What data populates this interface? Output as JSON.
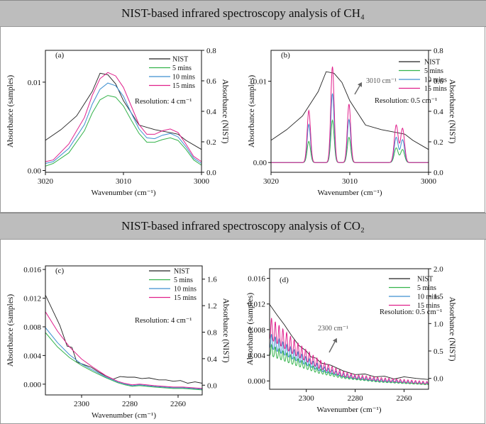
{
  "banners": {
    "ch4": "NIST-based infrared spectroscopy analysis of CH₄",
    "co2": "NIST-based infrared spectroscopy analysis of CO₂"
  },
  "colors": {
    "nist": "#222222",
    "m5": "#33b34a",
    "m10": "#3d8fd0",
    "m15": "#e0208c"
  },
  "chart_data": [
    {
      "id": "a",
      "type": "line",
      "panel_label": "(a)",
      "annotation": "Resolution: 4 cm⁻¹",
      "xlabel": "Wavenumber (cm⁻¹)",
      "ylabel": "Absorbance (samples)",
      "y2label": "Absorbance (NIST)",
      "xlim": [
        3020,
        3000
      ],
      "ylim": [
        -0.0002,
        0.0136
      ],
      "y2lim": [
        0,
        0.8
      ],
      "xticks": [
        "3020",
        "3010",
        "3000"
      ],
      "xtick_values": [
        3020,
        3010,
        3000
      ],
      "yticks": [
        "0.00",
        "0.01"
      ],
      "ytick_values": [
        0,
        0.01
      ],
      "y2ticks": [
        "0.0",
        "0.2",
        "0.4",
        "0.6",
        "0.8"
      ],
      "y2tick_values": [
        0,
        0.2,
        0.4,
        0.6,
        0.8
      ],
      "legend": [
        "NIST",
        "5 mins",
        "10 mins",
        "15 mins"
      ],
      "series": [
        {
          "name": "NIST",
          "axis": "right",
          "x": [
            3020,
            3018,
            3016,
            3014,
            3013,
            3012,
            3011,
            3010,
            3008,
            3006,
            3004,
            3003,
            3002,
            3000
          ],
          "values": [
            0.21,
            0.28,
            0.37,
            0.53,
            0.65,
            0.64,
            0.58,
            0.47,
            0.31,
            0.28,
            0.26,
            0.25,
            0.21,
            0.15
          ]
        },
        {
          "name": "5 mins",
          "axis": "left",
          "x": [
            3020,
            3019,
            3017,
            3015,
            3014,
            3013,
            3012,
            3011,
            3010,
            3009,
            3008,
            3007,
            3006,
            3005,
            3004,
            3003,
            3002,
            3001,
            3000
          ],
          "values": [
            0.0005,
            0.0008,
            0.002,
            0.0045,
            0.0065,
            0.008,
            0.0085,
            0.0083,
            0.0073,
            0.0057,
            0.0042,
            0.0032,
            0.0032,
            0.0035,
            0.0037,
            0.0034,
            0.0024,
            0.0012,
            0.0006
          ]
        },
        {
          "name": "10 mins",
          "axis": "left",
          "x": [
            3020,
            3019,
            3017,
            3015,
            3014,
            3013,
            3012,
            3011,
            3010,
            3009,
            3008,
            3007,
            3006,
            3005,
            3004,
            3003,
            3002,
            3001,
            3000
          ],
          "values": [
            0.0008,
            0.001,
            0.0025,
            0.0052,
            0.0075,
            0.0092,
            0.0099,
            0.0096,
            0.0084,
            0.0065,
            0.0047,
            0.0037,
            0.0036,
            0.004,
            0.0042,
            0.0038,
            0.0027,
            0.0014,
            0.0008
          ]
        },
        {
          "name": "15 mins",
          "axis": "left",
          "x": [
            3020,
            3019,
            3017,
            3015,
            3014,
            3013,
            3012,
            3011,
            3010,
            3009,
            3008,
            3007,
            3006,
            3005,
            3004,
            3003,
            3002,
            3001,
            3000
          ],
          "values": [
            0.001,
            0.0012,
            0.003,
            0.006,
            0.0085,
            0.0104,
            0.0111,
            0.0107,
            0.0094,
            0.0073,
            0.0052,
            0.0041,
            0.0041,
            0.0045,
            0.0047,
            0.0043,
            0.003,
            0.0016,
            0.001
          ]
        }
      ]
    },
    {
      "id": "b",
      "type": "line",
      "panel_label": "(b)",
      "annotation": "Resolution: 0.5 cm⁻¹",
      "callout": "3010 cm⁻¹",
      "xlabel": "Wavenumber (cm⁻¹)",
      "ylabel": "Absorbance (samples)",
      "y2label": "Absorbance (NIST)",
      "xlim": [
        3020,
        3000
      ],
      "ylim": [
        -0.0012,
        0.0138
      ],
      "y2lim": [
        0,
        0.8
      ],
      "xticks": [
        "3020",
        "3010",
        "3000"
      ],
      "xtick_values": [
        3020,
        3010,
        3000
      ],
      "yticks": [
        "0.00",
        "0.01"
      ],
      "ytick_values": [
        0,
        0.01
      ],
      "y2ticks": [
        "0.0",
        "0.2",
        "0.4",
        "0.6",
        "0.8"
      ],
      "y2tick_values": [
        0,
        0.2,
        0.4,
        0.6,
        0.8
      ],
      "legend": [
        "NIST",
        "5 mins",
        "10 mins",
        "15 mins"
      ],
      "series": [
        {
          "name": "NIST",
          "axis": "right",
          "x": [
            3020,
            3018,
            3016,
            3014,
            3013,
            3012,
            3011,
            3010,
            3008,
            3006,
            3004,
            3003,
            3002,
            3000
          ],
          "values": [
            0.21,
            0.28,
            0.37,
            0.53,
            0.66,
            0.65,
            0.59,
            0.47,
            0.31,
            0.28,
            0.26,
            0.25,
            0.21,
            0.15
          ]
        },
        {
          "name": "5 mins",
          "axis": "left",
          "peaks": [
            [
              3015.2,
              0.0026,
              0.3
            ],
            [
              3012.2,
              0.0052,
              0.3
            ],
            [
              3010.1,
              0.0031,
              0.3
            ],
            [
              3004.1,
              0.0018,
              0.35
            ],
            [
              3003.3,
              0.0016,
              0.35
            ]
          ]
        },
        {
          "name": "10 mins",
          "axis": "left",
          "peaks": [
            [
              3015.2,
              0.0047,
              0.3
            ],
            [
              3012.2,
              0.0085,
              0.3
            ],
            [
              3010.1,
              0.0053,
              0.3
            ],
            [
              3004.1,
              0.0031,
              0.35
            ],
            [
              3003.3,
              0.0028,
              0.35
            ]
          ]
        },
        {
          "name": "15 mins",
          "axis": "left",
          "peaks": [
            [
              3015.2,
              0.0064,
              0.3
            ],
            [
              3012.2,
              0.0118,
              0.3
            ],
            [
              3010.1,
              0.0072,
              0.3
            ],
            [
              3004.1,
              0.0046,
              0.35
            ],
            [
              3003.3,
              0.0042,
              0.35
            ]
          ]
        }
      ]
    },
    {
      "id": "c",
      "type": "line",
      "panel_label": "(c)",
      "annotation": "Resolution: 4 cm⁻¹",
      "xlabel": "Wavenumber (cm⁻¹)",
      "ylabel": "Absorbance (samples)",
      "y2label": "Absorbance (NIST)",
      "xlim": [
        2315,
        2250
      ],
      "ylim": [
        -0.0015,
        0.0165
      ],
      "y2lim": [
        -0.147,
        1.8
      ],
      "xticks": [
        "2300",
        "2280",
        "2260"
      ],
      "xtick_values": [
        2300,
        2280,
        2260
      ],
      "yticks": [
        "0.000",
        "0.004",
        "0.008",
        "0.012",
        "0.016"
      ],
      "ytick_values": [
        0,
        0.004,
        0.008,
        0.012,
        0.016
      ],
      "y2ticks": [
        "0.0",
        "0.4",
        "0.8",
        "1.2",
        "1.6"
      ],
      "y2tick_values": [
        0,
        0.4,
        0.8,
        1.2,
        1.6
      ],
      "legend": [
        "NIST",
        "5 mins",
        "10 mins",
        "15 mins"
      ],
      "series": [
        {
          "name": "NIST",
          "axis": "right",
          "x": [
            2315,
            2312,
            2309,
            2306,
            2304,
            2302,
            2299,
            2296,
            2293,
            2290,
            2287,
            2284,
            2281,
            2278,
            2275,
            2272,
            2268,
            2265,
            2262,
            2259,
            2256,
            2253,
            2250
          ],
          "values": [
            1.36,
            1.13,
            0.9,
            0.59,
            0.57,
            0.35,
            0.31,
            0.27,
            0.2,
            0.14,
            0.09,
            0.13,
            0.12,
            0.12,
            0.1,
            0.11,
            0.08,
            0.08,
            0.06,
            0.07,
            0.03,
            0.05,
            0.03
          ]
        },
        {
          "name": "5 mins",
          "axis": "left",
          "x": [
            2315,
            2310,
            2305,
            2300,
            2295,
            2290,
            2285,
            2282,
            2279,
            2276,
            2273,
            2270,
            2266,
            2262,
            2258,
            2254,
            2250
          ],
          "values": [
            0.0072,
            0.0052,
            0.0037,
            0.0026,
            0.0017,
            0.0009,
            0.0002,
            -0.0001,
            -0.0003,
            -0.0002,
            -0.0003,
            -0.0004,
            -0.0005,
            -0.0006,
            -0.0006,
            -0.0007,
            -0.0008
          ]
        },
        {
          "name": "10 mins",
          "axis": "left",
          "x": [
            2315,
            2310,
            2305,
            2300,
            2295,
            2290,
            2285,
            2282,
            2279,
            2276,
            2273,
            2270,
            2266,
            2262,
            2258,
            2254,
            2250
          ],
          "values": [
            0.0079,
            0.0058,
            0.0041,
            0.0028,
            0.0019,
            0.001,
            0.0003,
            0.0,
            -0.0002,
            -0.0001,
            -0.0002,
            -0.0003,
            -0.0004,
            -0.0005,
            -0.0005,
            -0.0006,
            -0.0007
          ]
        },
        {
          "name": "15 mins",
          "axis": "left",
          "x": [
            2315,
            2310,
            2305,
            2300,
            2295,
            2290,
            2285,
            2282,
            2279,
            2276,
            2273,
            2270,
            2266,
            2262,
            2258,
            2254,
            2250
          ],
          "values": [
            0.0101,
            0.0074,
            0.0052,
            0.0035,
            0.0023,
            0.0012,
            0.0004,
            0.0001,
            -0.0001,
            0.0,
            -0.0001,
            -0.0002,
            -0.0003,
            -0.0004,
            -0.0004,
            -0.0005,
            -0.0006
          ]
        }
      ]
    },
    {
      "id": "d",
      "type": "line",
      "panel_label": "(d)",
      "annotation": "Resolution: 0.5 cm⁻¹",
      "callout": "2300 cm⁻¹",
      "xlabel": "Wavenumber (cm⁻¹)",
      "ylabel": "Absorbance (samples)",
      "y2label": "Absorbance (NIST)",
      "xlim": [
        2315,
        2250
      ],
      "ylim": [
        -0.0013,
        0.0175
      ],
      "y2lim": [
        -0.198,
        2.0
      ],
      "xticks": [
        "2300",
        "2280",
        "2260"
      ],
      "xtick_values": [
        2300,
        2280,
        2260
      ],
      "yticks": [
        "0.000",
        "0.004",
        "0.008",
        "0.012",
        "0.016"
      ],
      "ytick_values": [
        0,
        0.004,
        0.008,
        0.012,
        0.016
      ],
      "y2ticks": [
        "0.0",
        "0.5",
        "1.0",
        "1.5",
        "2.0"
      ],
      "y2tick_values": [
        0,
        0.5,
        1.0,
        1.5,
        2.0
      ],
      "legend": [
        "NIST",
        "5 mins",
        "10 mins",
        "15 mins"
      ],
      "series": [
        {
          "name": "NIST",
          "axis": "right",
          "x": [
            2315,
            2312,
            2309,
            2306,
            2303,
            2300,
            2298,
            2296,
            2294,
            2290,
            2285,
            2280,
            2276,
            2272,
            2268,
            2264,
            2260,
            2255,
            2250
          ],
          "values": [
            1.35,
            1.16,
            0.98,
            0.78,
            0.6,
            0.5,
            0.39,
            0.37,
            0.28,
            0.24,
            0.14,
            0.07,
            0.08,
            0.03,
            0.04,
            -0.01,
            0.03,
            0.0,
            -0.02
          ]
        },
        {
          "name": "5 mins",
          "axis": "left",
          "base": [
            [
              2315,
              0.004
            ],
            [
              2305,
              0.0025
            ],
            [
              2295,
              0.0012
            ],
            [
              2285,
              0.0004
            ],
            [
              2280,
              0.0002
            ],
            [
              2270,
              -0.0002
            ],
            [
              2250,
              -0.0006
            ]
          ],
          "amp": [
            [
              2315,
              0.0018
            ],
            [
              2300,
              0.001
            ],
            [
              2290,
              0.0005
            ],
            [
              2280,
              0.0002
            ],
            [
              2250,
              0.0001
            ]
          ]
        },
        {
          "name": "10 mins",
          "axis": "left",
          "base": [
            [
              2315,
              0.0052
            ],
            [
              2305,
              0.0033
            ],
            [
              2295,
              0.0016
            ],
            [
              2285,
              0.0006
            ],
            [
              2280,
              0.0003
            ],
            [
              2270,
              -0.0001
            ],
            [
              2250,
              -0.0005
            ]
          ],
          "amp": [
            [
              2315,
              0.0023
            ],
            [
              2300,
              0.0013
            ],
            [
              2290,
              0.0007
            ],
            [
              2280,
              0.0004
            ],
            [
              2250,
              0.0002
            ]
          ]
        },
        {
          "name": "15 mins",
          "axis": "left",
          "base": [
            [
              2315,
              0.0066
            ],
            [
              2305,
              0.0041
            ],
            [
              2295,
              0.002
            ],
            [
              2285,
              0.0007
            ],
            [
              2280,
              0.0004
            ],
            [
              2270,
              0.0
            ],
            [
              2250,
              -0.0005
            ]
          ],
          "amp": [
            [
              2315,
              0.0035
            ],
            [
              2300,
              0.0018
            ],
            [
              2290,
              0.001
            ],
            [
              2280,
              0.0006
            ],
            [
              2250,
              0.0004
            ]
          ]
        }
      ]
    }
  ]
}
